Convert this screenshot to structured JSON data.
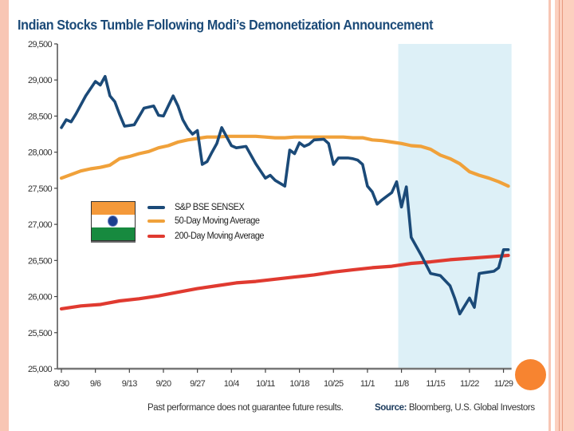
{
  "slide": {
    "accent_circle_color": "#f78430",
    "frame_color": "#f8c6b4"
  },
  "footer": {
    "disclaimer": "Past performance does not guarantee future results.",
    "source_label": "Source:",
    "source_text": " Bloomberg, U.S. Global Investors"
  },
  "chart_data": {
    "type": "line",
    "title": "Indian Stocks Tumble Following Modi’s Demonetization Announcement",
    "xlabel": "",
    "ylabel": "",
    "ylim": [
      25000,
      29500
    ],
    "yticks": [
      25000,
      25500,
      26000,
      26500,
      27000,
      27500,
      28000,
      28500,
      29000,
      29500
    ],
    "ytick_labels": [
      "25,000",
      "25,500",
      "26,000",
      "26,500",
      "27,000",
      "27,500",
      "28,000",
      "28,500",
      "29,000",
      "29,500"
    ],
    "xtick_labels": [
      "8/30",
      "9/6",
      "9/13",
      "9/20",
      "9/27",
      "10/4",
      "10/11",
      "10/18",
      "10/25",
      "11/1",
      "11/8",
      "11/15",
      "11/22",
      "11/29"
    ],
    "x_unit": "days since 8/30",
    "xlim": [
      0,
      92
    ],
    "grid": false,
    "legend_position": "left-middle",
    "highlight_region": {
      "from_label": "11/8",
      "to_day": 92,
      "color": "#ddf0f7",
      "meaning": "post-demonetization announcement"
    },
    "series": [
      {
        "name": "S&P BSE SENSEX",
        "color": "#1b4a78",
        "x": [
          0,
          1,
          2,
          3,
          5,
          7,
          8,
          9,
          10,
          11,
          12,
          13,
          15,
          17,
          19,
          20,
          21,
          23,
          24,
          25,
          26,
          27,
          28,
          29,
          30,
          31,
          32,
          33,
          35,
          36,
          37,
          38,
          40,
          42,
          43,
          44,
          46,
          47,
          48,
          49,
          50,
          51,
          52,
          54,
          55,
          56,
          57,
          58,
          59,
          60,
          61,
          62,
          63,
          64,
          65,
          66,
          67,
          68,
          69,
          70,
          71,
          72,
          73,
          74,
          76,
          78,
          80,
          81,
          82,
          84,
          85,
          86,
          87,
          88,
          89,
          90,
          91,
          92
        ],
        "values": [
          28340,
          28450,
          28420,
          28530,
          28780,
          28980,
          28930,
          29050,
          28780,
          28700,
          28520,
          28360,
          28380,
          28610,
          28640,
          28510,
          28500,
          28780,
          28640,
          28450,
          28330,
          28250,
          28300,
          27830,
          27870,
          28000,
          28120,
          28340,
          28090,
          28060,
          28070,
          28080,
          27840,
          27640,
          27680,
          27610,
          27530,
          28030,
          27980,
          28130,
          28080,
          28110,
          28170,
          28180,
          28120,
          27830,
          27920,
          27920,
          27920,
          27910,
          27890,
          27830,
          27530,
          27450,
          27280,
          27340,
          27390,
          27440,
          27590,
          27240,
          27520,
          26820,
          26700,
          26580,
          26320,
          26290,
          26150,
          25970,
          25760,
          25980,
          25850,
          26320,
          26330,
          26340,
          26350,
          26400,
          26650,
          26650
        ]
      },
      {
        "name": "50-Day Moving Average",
        "color": "#f0a13a",
        "x": [
          0,
          2,
          4,
          6,
          8,
          10,
          12,
          14,
          16,
          18,
          20,
          22,
          24,
          26,
          28,
          30,
          32,
          34,
          36,
          38,
          40,
          42,
          44,
          46,
          48,
          50,
          52,
          54,
          56,
          58,
          60,
          62,
          64,
          66,
          68,
          70,
          72,
          74,
          76,
          78,
          80,
          82,
          84,
          86,
          88,
          90,
          92
        ],
        "values": [
          27640,
          27690,
          27740,
          27770,
          27790,
          27820,
          27910,
          27940,
          27980,
          28010,
          28060,
          28090,
          28140,
          28170,
          28190,
          28210,
          28210,
          28220,
          28220,
          28220,
          28220,
          28210,
          28200,
          28200,
          28210,
          28210,
          28210,
          28210,
          28210,
          28210,
          28200,
          28200,
          28170,
          28160,
          28140,
          28120,
          28090,
          28080,
          28040,
          27960,
          27910,
          27840,
          27730,
          27680,
          27640,
          27590,
          27530
        ]
      },
      {
        "name": "200-Day Moving Average",
        "color": "#e03a30",
        "x": [
          0,
          4,
          8,
          12,
          16,
          20,
          24,
          28,
          32,
          36,
          40,
          44,
          48,
          52,
          56,
          60,
          64,
          68,
          72,
          76,
          80,
          84,
          88,
          92
        ],
        "values": [
          25830,
          25870,
          25890,
          25940,
          25970,
          26010,
          26060,
          26110,
          26150,
          26190,
          26210,
          26240,
          26270,
          26300,
          26340,
          26370,
          26400,
          26420,
          26460,
          26480,
          26510,
          26530,
          26550,
          26570
        ]
      }
    ]
  }
}
